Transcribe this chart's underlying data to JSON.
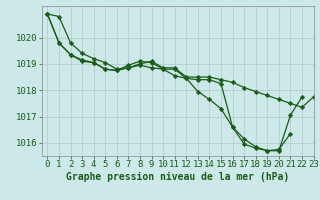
{
  "background_color": "#cce8e8",
  "line_color": "#1a5c1a",
  "grid_color": "#b0c8c8",
  "title": "Graphe pression niveau de la mer (hPa)",
  "xlim": [
    -0.5,
    23
  ],
  "ylim": [
    1015.5,
    1021.2
  ],
  "yticks": [
    1016,
    1017,
    1018,
    1019,
    1020
  ],
  "xticks": [
    0,
    1,
    2,
    3,
    4,
    5,
    6,
    7,
    8,
    9,
    10,
    11,
    12,
    13,
    14,
    15,
    16,
    17,
    18,
    19,
    20,
    21,
    22,
    23
  ],
  "line1_x": [
    0,
    1,
    2,
    3,
    4,
    5,
    6,
    7,
    8,
    9,
    10,
    11,
    12,
    13,
    14,
    15,
    16,
    17,
    18,
    19,
    20,
    21,
    22,
    23
  ],
  "line1_y": [
    1020.9,
    1020.8,
    1019.8,
    1019.4,
    1019.2,
    1019.05,
    1018.8,
    1018.85,
    1019.0,
    1019.1,
    1018.85,
    1018.85,
    1018.5,
    1018.5,
    1018.5,
    1018.4,
    1018.3,
    1018.1,
    1017.95,
    1017.8,
    1017.65,
    1017.5,
    1017.35,
    1017.75
  ],
  "line2_x": [
    0,
    1,
    2,
    3,
    4,
    5,
    6,
    7,
    8,
    9,
    10,
    11,
    12,
    13,
    14,
    15,
    16,
    17,
    18,
    19,
    20,
    21,
    22
  ],
  "line2_y": [
    1020.9,
    1019.8,
    1019.35,
    1019.15,
    1019.05,
    1018.8,
    1018.75,
    1018.95,
    1019.1,
    1019.05,
    1018.8,
    1018.55,
    1018.45,
    1017.95,
    1017.65,
    1017.3,
    1016.6,
    1016.15,
    1015.85,
    1015.7,
    1015.7,
    1017.05,
    1017.75
  ],
  "line3_x": [
    0,
    1,
    2,
    3,
    4,
    5,
    6,
    7,
    8,
    9,
    10,
    11,
    12,
    13,
    14,
    15,
    16,
    17,
    18,
    19,
    20,
    21
  ],
  "line3_y": [
    1020.9,
    1019.8,
    1019.35,
    1019.1,
    1019.05,
    1018.8,
    1018.75,
    1018.85,
    1018.95,
    1018.85,
    1018.8,
    1018.8,
    1018.45,
    1018.4,
    1018.4,
    1018.25,
    1016.6,
    1015.95,
    1015.8,
    1015.7,
    1015.75,
    1016.35
  ],
  "title_fontsize": 7,
  "tick_fontsize": 6.5
}
